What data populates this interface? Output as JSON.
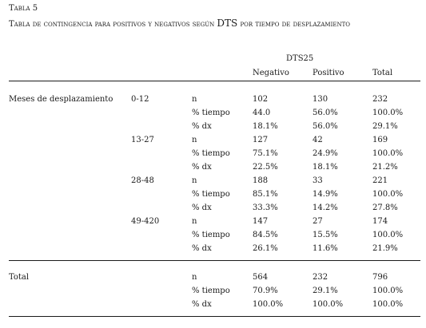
{
  "caption": {
    "label": "Tabla 5",
    "title_pre": "Tabla de contingencia para positivos y negativos según ",
    "title_dts": "DTS",
    "title_post": " por tiempo de desplazamiento"
  },
  "table": {
    "group_header": "DTS25",
    "columns": [
      "Negativo",
      "Positivo",
      "Total"
    ],
    "rows": [
      {
        "variable": "Meses de desplazamiento",
        "category": "0-12",
        "stat": "n",
        "values": [
          "102",
          "130",
          "232"
        ]
      },
      {
        "stat": "% tiempo",
        "values": [
          "44.0",
          "56.0%",
          "100.0%"
        ]
      },
      {
        "stat": "% dx",
        "values": [
          "18.1%",
          "56.0%",
          "29.1%"
        ]
      },
      {
        "category": "13-27",
        "stat": "n",
        "values": [
          "127",
          "42",
          "169"
        ]
      },
      {
        "stat": "% tiempo",
        "values": [
          "75.1%",
          "24.9%",
          "100.0%"
        ]
      },
      {
        "stat": "% dx",
        "values": [
          "22.5%",
          "18.1%",
          "21.2%"
        ]
      },
      {
        "category": "28-48",
        "stat": "n",
        "values": [
          "188",
          "33",
          "221"
        ]
      },
      {
        "stat": "% tiempo",
        "values": [
          "85.1%",
          "14.9%",
          "100.0%"
        ]
      },
      {
        "stat": "% dx",
        "values": [
          "33.3%",
          "14.2%",
          "27.8%"
        ]
      },
      {
        "category": "49-420",
        "stat": "n",
        "values": [
          "147",
          "27",
          "174"
        ]
      },
      {
        "stat": "% tiempo",
        "values": [
          "84.5%",
          "15.5%",
          "100.0%"
        ]
      },
      {
        "stat": "% dx",
        "values": [
          "26.1%",
          "11.6%",
          "21.9%"
        ]
      },
      {
        "variable": "Total",
        "stat": "n",
        "values": [
          "564",
          "232",
          "796"
        ]
      },
      {
        "stat": "% tiempo",
        "values": [
          "70.9%",
          "29.1%",
          "100.0%"
        ]
      },
      {
        "stat": "% dx",
        "values": [
          "100.0%",
          "100.0%",
          "100.0%"
        ]
      }
    ]
  }
}
